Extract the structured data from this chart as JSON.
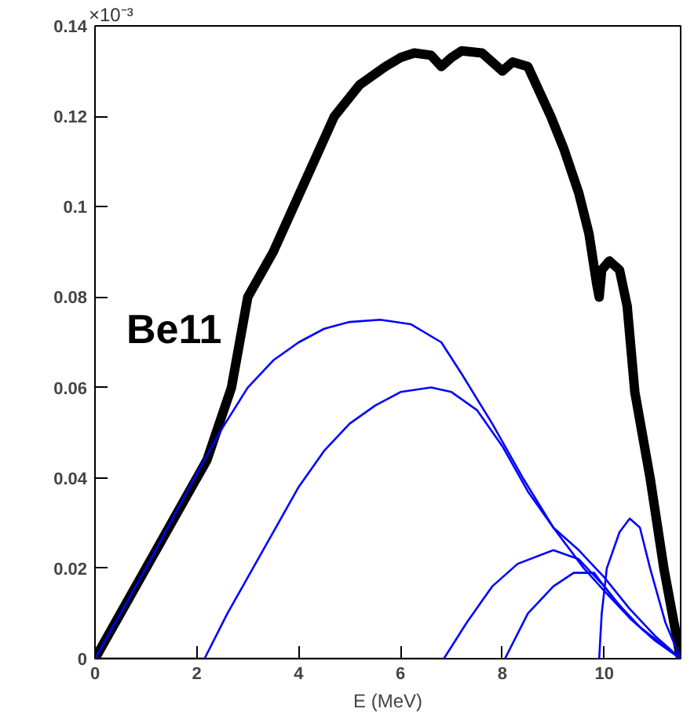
{
  "chart_data": {
    "type": "line",
    "xlabel": "E (MeV)",
    "xlim": [
      0,
      11.5
    ],
    "ylim": [
      0,
      0.14
    ],
    "xticks": [
      0,
      2,
      4,
      6,
      8,
      10
    ],
    "yticks": [
      0,
      0.02,
      0.04,
      0.06,
      0.08,
      0.1,
      0.12,
      0.14
    ],
    "grid": false,
    "annotations": [
      "×10⁻³",
      "Be11"
    ],
    "series": [
      {
        "color": "#000000",
        "x": [
          0,
          1,
          1.1,
          2.2,
          2.68,
          3.0,
          3.5,
          3.9,
          4.3,
          4.7,
          5.2,
          5.7,
          6.0,
          6.27,
          6.6,
          6.8,
          7.0,
          7.2,
          7.6,
          7.9,
          8.0,
          8.2,
          8.5,
          8.95,
          9.2,
          9.5,
          9.7,
          9.85,
          9.9,
          9.95,
          10.1,
          10.3,
          10.45,
          10.6,
          10.9,
          11.17,
          11.5
        ],
        "values": [
          0,
          0.02,
          0.022,
          0.044,
          0.06,
          0.08,
          0.09,
          0.1,
          0.11,
          0.12,
          0.127,
          0.131,
          0.133,
          0.134,
          0.1335,
          0.131,
          0.133,
          0.1345,
          0.134,
          0.131,
          0.13,
          0.132,
          0.131,
          0.12,
          0.113,
          0.103,
          0.094,
          0.083,
          0.08,
          0.086,
          0.088,
          0.086,
          0.078,
          0.059,
          0.04,
          0.02,
          0
        ]
      },
      {
        "color": "#0000ff",
        "x": [
          0,
          1,
          2,
          2.5,
          3,
          3.5,
          4,
          4.5,
          5,
          5.6,
          6.2,
          6.8,
          7.2,
          7.8,
          8.4,
          9,
          9.5,
          10,
          10.5,
          11,
          11.5
        ],
        "values": [
          0,
          0.02,
          0.041,
          0.051,
          0.06,
          0.066,
          0.07,
          0.073,
          0.0745,
          0.075,
          0.074,
          0.07,
          0.063,
          0.052,
          0.04,
          0.029,
          0.024,
          0.018,
          0.011,
          0.005,
          0
        ]
      },
      {
        "color": "#0000ff",
        "x": [
          0,
          2.15,
          2.6,
          3.1,
          3.5,
          4,
          4.5,
          5,
          5.5,
          6,
          6.6,
          7,
          7.5,
          8,
          8.5,
          9,
          9.6,
          10,
          10.5,
          11,
          11.5
        ],
        "values": [
          0,
          0,
          0.01,
          0.02,
          0.028,
          0.038,
          0.046,
          0.052,
          0.056,
          0.059,
          0.06,
          0.059,
          0.055,
          0.047,
          0.037,
          0.029,
          0.02,
          0.015,
          0.009,
          0.004,
          0
        ]
      },
      {
        "color": "#0000ff",
        "x": [
          0,
          6.85,
          7.3,
          7.8,
          8.3,
          9,
          9.5,
          10,
          10.5,
          11,
          11.5
        ],
        "values": [
          0,
          0,
          0.008,
          0.016,
          0.021,
          0.024,
          0.022,
          0.016,
          0.009,
          0.004,
          0
        ]
      },
      {
        "color": "#0000ff",
        "x": [
          8.05,
          8.5,
          9,
          9.4,
          9.8,
          10.2,
          10.7,
          11.5
        ],
        "values": [
          0,
          0.01,
          0.016,
          0.019,
          0.019,
          0.013,
          0.007,
          0
        ]
      },
      {
        "color": "#0000ff",
        "x": [
          9.9,
          9.95,
          10.05,
          10.3,
          10.5,
          10.7,
          10.9,
          11.2,
          11.5
        ],
        "values": [
          0,
          0.01,
          0.02,
          0.028,
          0.031,
          0.029,
          0.02,
          0.008,
          0
        ]
      }
    ]
  }
}
